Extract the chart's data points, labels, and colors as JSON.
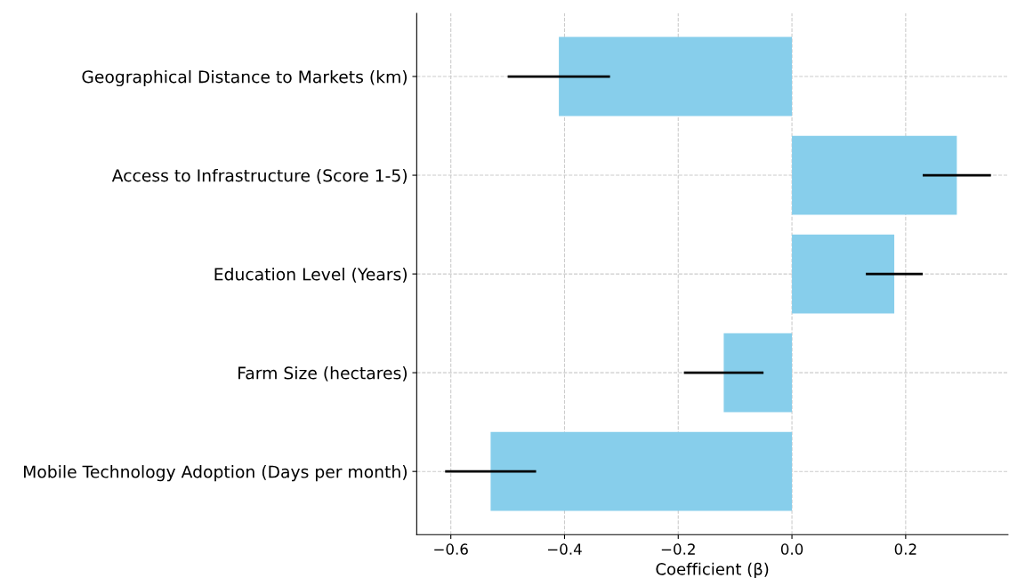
{
  "chart_data": {
    "type": "bar",
    "orientation": "horizontal",
    "xlabel": "Coefficient (β)",
    "categories": [
      "Geographical Distance to Markets (km)",
      "Access to Infrastructure (Score 1-5)",
      "Education Level (Years)",
      "Farm Size (hectares)",
      "Mobile Technology Adoption (Days per month)"
    ],
    "values": [
      -0.41,
      0.29,
      0.18,
      -0.12,
      -0.53
    ],
    "errors": [
      0.09,
      0.06,
      0.05,
      0.07,
      0.08
    ],
    "color": "#87ceeb",
    "xlim": [
      -0.66,
      0.38
    ],
    "xticks": [
      {
        "value": -0.6,
        "label": "−0.6"
      },
      {
        "value": -0.4,
        "label": "−0.4"
      },
      {
        "value": -0.2,
        "label": "−0.2"
      },
      {
        "value": 0.0,
        "label": "0.0"
      },
      {
        "value": 0.2,
        "label": "0.2"
      }
    ],
    "grid": true
  }
}
